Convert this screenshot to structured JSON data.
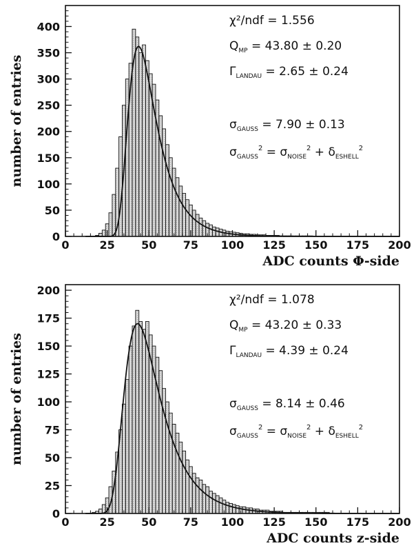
{
  "chart_data": [
    {
      "type": "bar",
      "ylabel": "number of entries",
      "xlabel": "ADC counts Φ-side",
      "xlim": [
        0,
        200
      ],
      "ylim": [
        0,
        440
      ],
      "xticks": [
        "0",
        "25",
        "50",
        "75",
        "100",
        "125",
        "150",
        "175",
        "200"
      ],
      "yticks": [
        "0",
        "50",
        "100",
        "150",
        "200",
        "250",
        "300",
        "350",
        "400"
      ],
      "bin_width": 2,
      "bin_start": 16,
      "values": [
        0,
        2,
        6,
        12,
        24,
        45,
        80,
        130,
        190,
        250,
        300,
        330,
        395,
        380,
        350,
        365,
        335,
        310,
        290,
        260,
        230,
        205,
        175,
        150,
        130,
        112,
        96,
        82,
        70,
        60,
        50,
        42,
        35,
        30,
        25,
        22,
        18,
        16,
        14,
        12,
        10,
        9,
        8,
        7,
        6,
        5,
        5,
        4,
        4,
        3,
        3,
        3,
        2,
        2,
        2,
        2,
        1,
        1,
        1,
        1,
        1,
        1,
        1,
        1,
        1,
        1,
        0,
        0,
        0,
        0,
        0,
        0,
        0,
        0,
        0,
        0,
        0,
        0,
        0,
        0,
        0,
        0,
        0,
        0,
        0,
        0,
        0,
        0,
        0,
        0,
        0,
        0
      ],
      "fit": {
        "mpv": 43.8,
        "gamma": 2.65,
        "sigma": 7.9,
        "peak": 362
      },
      "annotations": {
        "chi2": "χ²/ndf  =  1.556",
        "qmp": "Q",
        "qmp_sub": "MP",
        "qmp_val": "  =  43.80 ± 0.20",
        "gamma": "Γ",
        "gamma_sub": "LANDAU",
        "gamma_val": "  =  2.65 ± 0.24",
        "sigma": "σ",
        "sigma_sub": "GAUSS",
        "sigma_val": "  =  7.90 ± 0.13",
        "formula_a": "σ",
        "formula_a_sub": "GAUSS",
        "formula_a_sup": "2",
        "formula_eq": " = σ",
        "formula_b_sub": "NOISE",
        "formula_b_sup": "2",
        "formula_plus": " + δ",
        "formula_c_sub": "ESHELL",
        "formula_c_sup": "2"
      }
    },
    {
      "type": "bar",
      "ylabel": "number of entries",
      "xlabel": "ADC counts z-side",
      "xlim": [
        0,
        200
      ],
      "ylim": [
        0,
        205
      ],
      "xticks": [
        "0",
        "25",
        "50",
        "75",
        "100",
        "125",
        "150",
        "175",
        "200"
      ],
      "yticks": [
        "0",
        "25",
        "50",
        "75",
        "100",
        "125",
        "150",
        "175",
        "200"
      ],
      "bin_width": 2,
      "bin_start": 14,
      "values": [
        0,
        1,
        2,
        4,
        8,
        14,
        24,
        38,
        55,
        75,
        98,
        120,
        150,
        168,
        182,
        172,
        165,
        172,
        160,
        150,
        140,
        128,
        112,
        100,
        90,
        80,
        72,
        64,
        56,
        48,
        42,
        36,
        32,
        30,
        26,
        24,
        20,
        18,
        16,
        14,
        12,
        10,
        9,
        8,
        7,
        6,
        6,
        5,
        5,
        4,
        4,
        3,
        3,
        3,
        2,
        2,
        2,
        2,
        1,
        1,
        1,
        1,
        1,
        1,
        1,
        1,
        1,
        1,
        1,
        1,
        1,
        1,
        0,
        0,
        0,
        0,
        0,
        0,
        0,
        0,
        0,
        0,
        0,
        0,
        0,
        0,
        0,
        0,
        0,
        0,
        0,
        0,
        0
      ],
      "fit": {
        "mpv": 43.2,
        "gamma": 4.39,
        "sigma": 8.14,
        "peak": 170
      },
      "annotations": {
        "chi2": "χ²/ndf  =  1.078",
        "qmp": "Q",
        "qmp_sub": "MP",
        "qmp_val": "  =  43.20 ± 0.33",
        "gamma": "Γ",
        "gamma_sub": "LANDAU",
        "gamma_val": "  =  4.39 ± 0.24",
        "sigma": "σ",
        "sigma_sub": "GAUSS",
        "sigma_val": "  =  8.14 ± 0.46",
        "formula_a": "σ",
        "formula_a_sub": "GAUSS",
        "formula_a_sup": "2",
        "formula_eq": " = σ",
        "formula_b_sub": "NOISE",
        "formula_b_sup": "2",
        "formula_plus": " + δ",
        "formula_c_sub": "ESHELL",
        "formula_c_sup": "2"
      }
    }
  ],
  "colors": {
    "fill": "#d8d8d8",
    "line": "#111111"
  }
}
